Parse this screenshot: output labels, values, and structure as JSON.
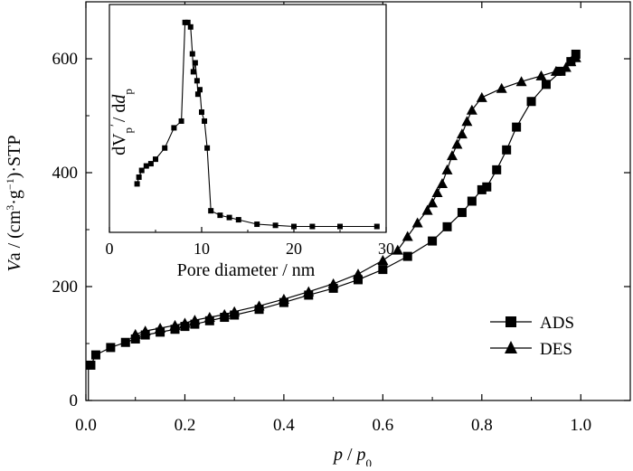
{
  "chart_data": [
    {
      "type": "line",
      "role": "main",
      "xlabel": {
        "p1": "p",
        "sep": " / ",
        "p2": "p",
        "sub": "0"
      },
      "ylabel": {
        "a": "V",
        "b": "a / (cm",
        "sup1": "3",
        "c": "·g",
        "sup2": "−1",
        "d": ")·STP"
      },
      "xlim": [
        0,
        1.1
      ],
      "ylim": [
        0,
        700
      ],
      "x_ticks": [
        "0.0",
        "0.2",
        "0.4",
        "0.6",
        "0.8",
        "1.0"
      ],
      "x_tick_values": [
        0,
        0.2,
        0.4,
        0.6,
        0.8,
        1.0
      ],
      "y_ticks": [
        "0",
        "200",
        "400",
        "600"
      ],
      "y_tick_values": [
        0,
        200,
        400,
        600
      ],
      "grid": false,
      "legend_position": "bottom-right",
      "series": [
        {
          "name": "ADS",
          "marker": "square",
          "x": [
            0.01,
            0.02,
            0.05,
            0.08,
            0.1,
            0.12,
            0.15,
            0.18,
            0.2,
            0.22,
            0.25,
            0.28,
            0.3,
            0.35,
            0.4,
            0.45,
            0.5,
            0.55,
            0.6,
            0.65,
            0.7,
            0.73,
            0.76,
            0.78,
            0.8,
            0.81,
            0.83,
            0.85,
            0.87,
            0.9,
            0.93,
            0.96,
            0.98,
            0.99
          ],
          "y": [
            62,
            80,
            93,
            102,
            108,
            115,
            120,
            125,
            130,
            134,
            140,
            146,
            150,
            160,
            172,
            185,
            197,
            212,
            230,
            253,
            280,
            305,
            330,
            350,
            370,
            375,
            405,
            440,
            480,
            525,
            555,
            578,
            595,
            608
          ]
        },
        {
          "name": "DES",
          "marker": "triangle",
          "x": [
            0.1,
            0.12,
            0.15,
            0.18,
            0.2,
            0.22,
            0.25,
            0.28,
            0.3,
            0.35,
            0.4,
            0.45,
            0.5,
            0.55,
            0.6,
            0.63,
            0.65,
            0.67,
            0.69,
            0.7,
            0.71,
            0.72,
            0.73,
            0.74,
            0.75,
            0.76,
            0.77,
            0.78,
            0.8,
            0.84,
            0.88,
            0.92,
            0.95,
            0.97,
            0.98,
            0.99
          ],
          "y": [
            116,
            122,
            127,
            132,
            136,
            141,
            146,
            151,
            156,
            166,
            178,
            191,
            205,
            222,
            246,
            264,
            288,
            312,
            334,
            347,
            365,
            381,
            405,
            430,
            450,
            468,
            490,
            510,
            532,
            548,
            560,
            570,
            578,
            585,
            595,
            602
          ]
        }
      ],
      "x_start_marker": 0.005
    },
    {
      "type": "line",
      "role": "inset",
      "xlabel": "Pore diameter / nm",
      "ylabel": {
        "a": "dV",
        "sub1": "p",
        "b": "/ d",
        "c": "d",
        "sub2": "p"
      },
      "xlim": [
        0,
        30
      ],
      "ylim": [
        0,
        100
      ],
      "x_ticks": [
        "0",
        "10",
        "20",
        "30"
      ],
      "x_tick_values": [
        0,
        10,
        20,
        30
      ],
      "y_ticks": [],
      "series": [
        {
          "name": "",
          "marker": "square",
          "x": [
            3.0,
            3.2,
            3.5,
            4.0,
            4.5,
            5.0,
            6.0,
            7.0,
            7.8,
            8.2,
            8.5,
            8.8,
            9.0,
            9.1,
            9.3,
            9.5,
            9.6,
            9.8,
            10.0,
            10.3,
            10.6,
            11.0,
            12.0,
            13.0,
            14.0,
            16.0,
            18.0,
            20.0,
            22.0,
            25.0,
            29.0
          ],
          "y": [
            20,
            23,
            26,
            28,
            29,
            31,
            36,
            45,
            48,
            92,
            92,
            90,
            78,
            70,
            74,
            66,
            60,
            62,
            52,
            48,
            36,
            8,
            6,
            5,
            4,
            2,
            1.5,
            1,
            1,
            1,
            1
          ]
        }
      ]
    }
  ]
}
